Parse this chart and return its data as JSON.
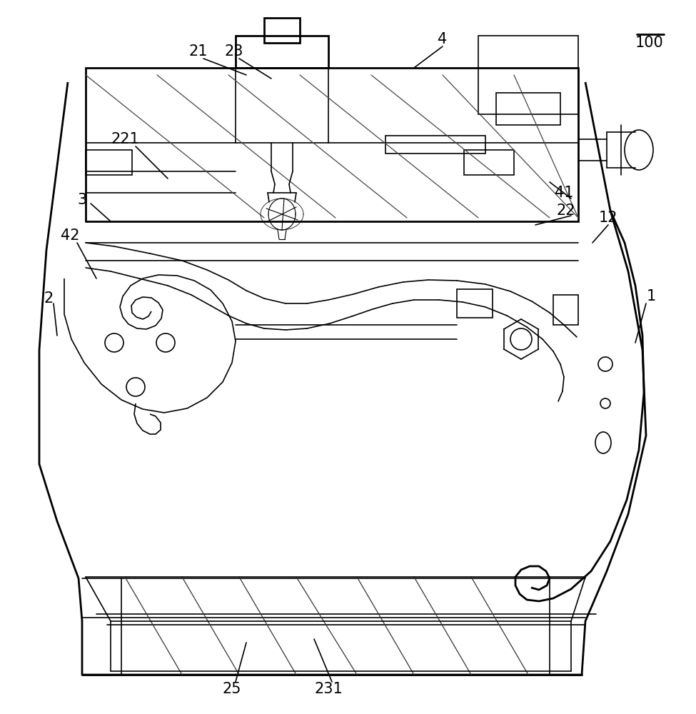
{
  "bg_color": "#ffffff",
  "line_color": "#000000",
  "lw_main": 2.0,
  "lw_thin": 1.2,
  "lw_hatch": 0.9,
  "figsize": [
    9.75,
    10.0
  ],
  "dpi": 100
}
